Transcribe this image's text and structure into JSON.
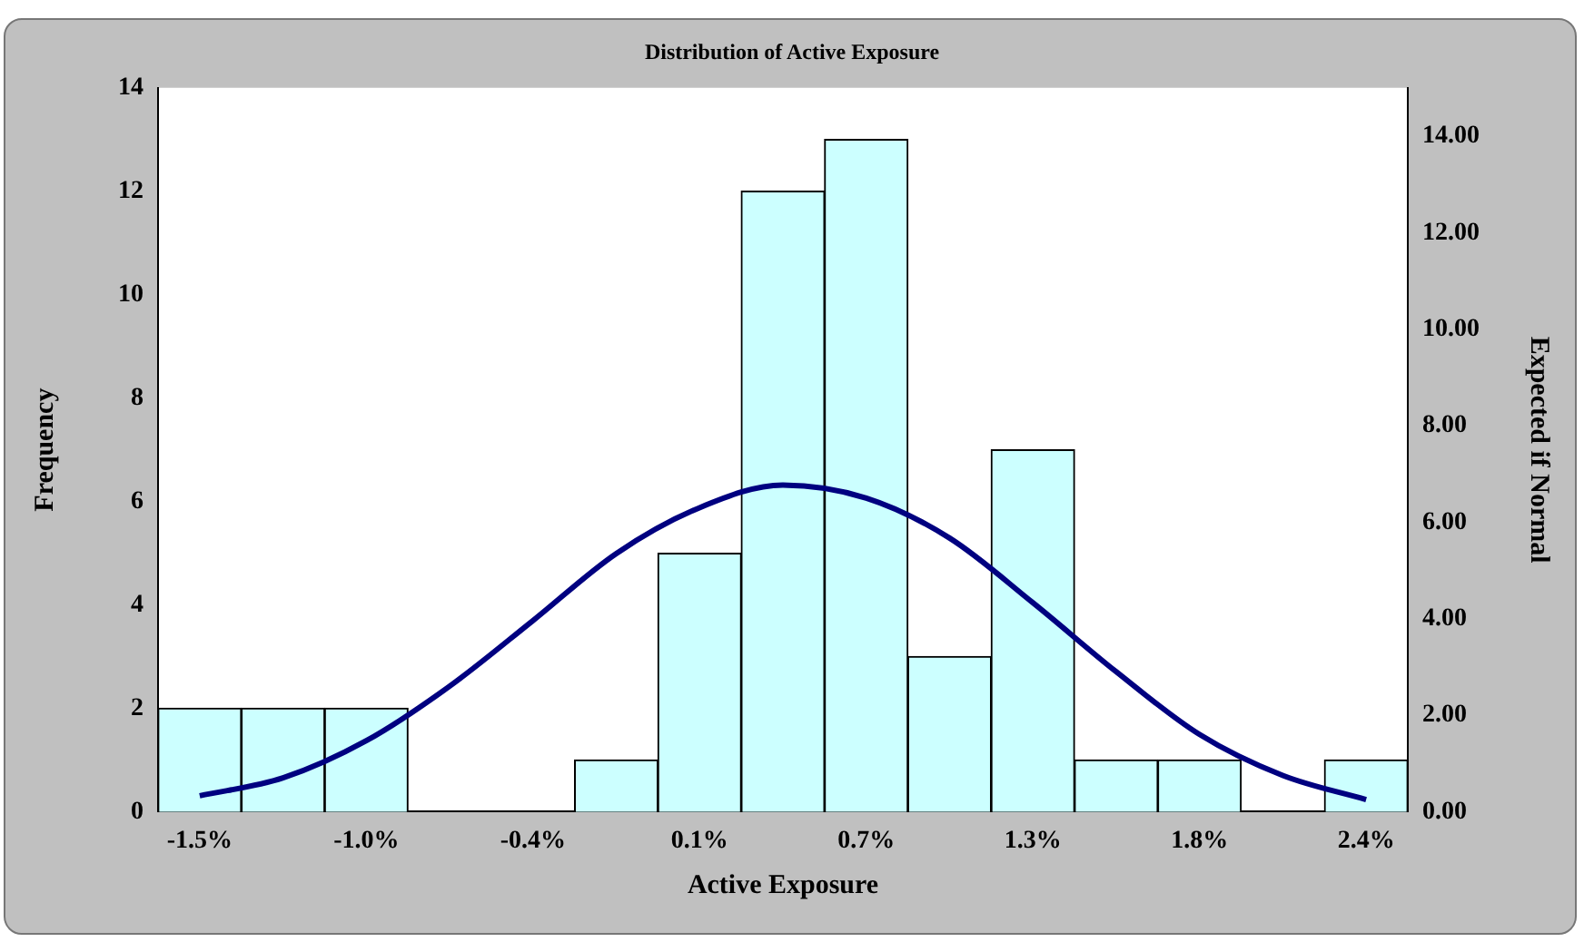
{
  "chart_data": {
    "type": "bar",
    "title": "Distribution of Active Exposure",
    "xlabel": "Active Exposure",
    "ylabel": "Frequency",
    "y2label": "Expected if Normal",
    "categories": [
      "-1.5%",
      null,
      "-1.0%",
      null,
      "-0.4%",
      null,
      "0.1%",
      null,
      "0.7%",
      null,
      "1.3%",
      null,
      "1.8%",
      null,
      "2.4%"
    ],
    "series": [
      {
        "color": "#ccffff",
        "values": [
          2,
          2,
          2,
          0,
          0,
          1,
          5,
          12,
          13,
          3,
          7,
          1,
          1,
          0,
          1
        ]
      },
      {
        "type": "line",
        "axis": "y2",
        "color": "#000080",
        "values": [
          0.33,
          0.7,
          1.47,
          2.6,
          3.96,
          5.35,
          6.3,
          6.77,
          6.5,
          5.67,
          4.33,
          2.9,
          1.6,
          0.75,
          0.25
        ]
      }
    ],
    "ylim": [
      0,
      14
    ],
    "yticks": [
      0,
      2,
      4,
      6,
      8,
      10,
      12,
      14
    ],
    "y2lim": [
      0,
      15
    ],
    "y2ticks": [
      {
        "value": 0,
        "label": "0.00"
      },
      {
        "value": 2,
        "label": "2.00"
      },
      {
        "value": 4,
        "label": "4.00"
      },
      {
        "value": 6,
        "label": "6.00"
      },
      {
        "value": 8,
        "label": "8.00"
      },
      {
        "value": 10,
        "label": "10.00"
      },
      {
        "value": 12,
        "label": "12.00"
      },
      {
        "value": 14,
        "label": "14.00"
      }
    ],
    "grid": false,
    "legend": false,
    "marker": "none",
    "line_style": "solid"
  }
}
